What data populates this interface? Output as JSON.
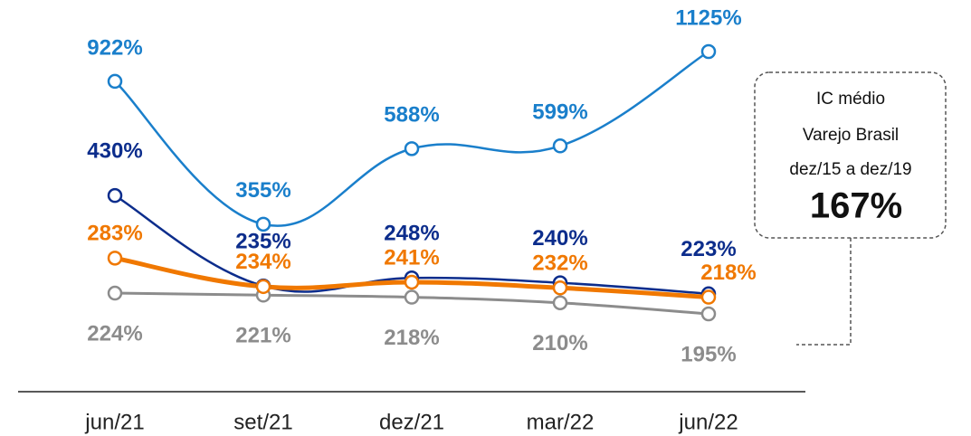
{
  "chart_data": {
    "type": "line",
    "categories": [
      "jun/21",
      "set/21",
      "dez/21",
      "mar/22",
      "jun/22"
    ],
    "series": [
      {
        "color": "#8c8c8c",
        "values": [
          224,
          221,
          218,
          210,
          195
        ],
        "value_labels": [
          "224%",
          "221%",
          "218%",
          "210%",
          "195%"
        ]
      },
      {
        "color": "#1a7fcb",
        "values": [
          922,
          355,
          588,
          599,
          1125
        ],
        "value_labels": [
          "922%",
          "355%",
          "588%",
          "599%",
          "1125%"
        ]
      },
      {
        "color": "#0c2d8c",
        "values": [
          430,
          235,
          248,
          240,
          223
        ],
        "value_labels": [
          "430%",
          "235%",
          "248%",
          "240%",
          "223%"
        ]
      },
      {
        "color": "#f07800",
        "values": [
          283,
          234,
          241,
          232,
          218
        ],
        "value_labels": [
          "283%",
          "234%",
          "241%",
          "232%",
          "218%"
        ]
      }
    ],
    "annotation": [
      "IC médio",
      "Varejo Brasil",
      "dez/15 a dez/19",
      "167%"
    ]
  }
}
